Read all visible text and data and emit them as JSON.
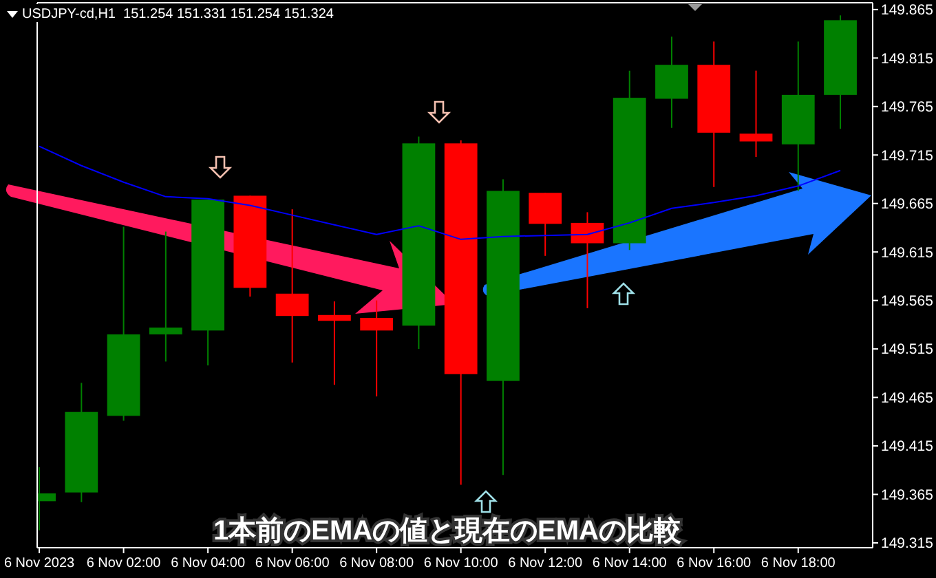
{
  "chart_data": {
    "type": "candlestick",
    "title": "USDJPY-cd,H1  151.254 151.331 151.254 151.324",
    "x": [
      "2023-11-06T00:00",
      "2023-11-06T01:00",
      "2023-11-06T02:00",
      "2023-11-06T03:00",
      "2023-11-06T04:00",
      "2023-11-06T05:00",
      "2023-11-06T06:00",
      "2023-11-06T07:00",
      "2023-11-06T08:00",
      "2023-11-06T09:00",
      "2023-11-06T10:00",
      "2023-11-06T11:00",
      "2023-11-06T12:00",
      "2023-11-06T13:00",
      "2023-11-06T14:00",
      "2023-11-06T15:00",
      "2023-11-06T16:00",
      "2023-11-06T17:00",
      "2023-11-06T18:00",
      "2023-11-06T19:00"
    ],
    "ohlc": [
      [
        149.358,
        149.393,
        149.328,
        149.366
      ],
      [
        149.367,
        149.48,
        149.357,
        149.45
      ],
      [
        149.446,
        149.641,
        149.441,
        149.53
      ],
      [
        149.53,
        149.636,
        149.502,
        149.537
      ],
      [
        149.534,
        149.669,
        149.498,
        149.669
      ],
      [
        149.673,
        149.673,
        149.569,
        149.578
      ],
      [
        149.572,
        149.659,
        149.501,
        149.549
      ],
      [
        149.55,
        149.564,
        149.478,
        149.544
      ],
      [
        149.547,
        149.565,
        149.466,
        149.534
      ],
      [
        149.539,
        149.734,
        149.515,
        149.727
      ],
      [
        149.727,
        149.73,
        149.375,
        149.489
      ],
      [
        149.482,
        149.69,
        149.385,
        149.678
      ],
      [
        149.676,
        149.676,
        149.611,
        149.644
      ],
      [
        149.645,
        149.656,
        149.557,
        149.624
      ],
      [
        149.624,
        149.802,
        149.617,
        149.774
      ],
      [
        149.773,
        149.837,
        149.743,
        149.808
      ],
      [
        149.808,
        149.832,
        149.682,
        149.738
      ],
      [
        149.737,
        149.802,
        149.713,
        149.729
      ],
      [
        149.726,
        149.832,
        149.678,
        149.777
      ],
      [
        149.777,
        149.859,
        149.742,
        149.854
      ]
    ],
    "colors": [
      "#008000",
      "#008000",
      "#008000",
      "#008000",
      "#008000",
      "#ff0000",
      "#ff0000",
      "#ff0000",
      "#ff0000",
      "#008000",
      "#ff0000",
      "#008000",
      "#ff0000",
      "#ff0000",
      "#008000",
      "#008000",
      "#ff0000",
      "#ff0000",
      "#008000",
      "#008000"
    ],
    "series": [
      {
        "type": "line",
        "color": "#0000ff",
        "x": [
          "2023-11-06T00:00",
          "2023-11-06T01:00",
          "2023-11-06T02:00",
          "2023-11-06T03:00",
          "2023-11-06T04:00",
          "2023-11-06T05:00",
          "2023-11-06T06:00",
          "2023-11-06T07:00",
          "2023-11-06T08:00",
          "2023-11-06T09:00",
          "2023-11-06T10:00",
          "2023-11-06T11:00",
          "2023-11-06T12:00",
          "2023-11-06T13:00",
          "2023-11-06T14:00",
          "2023-11-06T15:00",
          "2023-11-06T16:00",
          "2023-11-06T17:00",
          "2023-11-06T18:00",
          "2023-11-06T19:00"
        ],
        "values": [
          149.724,
          149.704,
          149.687,
          149.672,
          149.67,
          149.663,
          149.653,
          149.643,
          149.633,
          149.642,
          149.628,
          149.631,
          149.632,
          149.633,
          149.645,
          149.66,
          149.666,
          149.673,
          149.683,
          149.699
        ]
      }
    ],
    "xlim": [
      "2023-11-05T23:57",
      "2023-11-06T19:46"
    ],
    "xticks": [
      {
        "value": "2023-11-06T00:00",
        "label": "6 Nov 2023"
      },
      {
        "value": "2023-11-06T02:00",
        "label": "6 Nov 02:00"
      },
      {
        "value": "2023-11-06T04:00",
        "label": "6 Nov 04:00"
      },
      {
        "value": "2023-11-06T06:00",
        "label": "6 Nov 06:00"
      },
      {
        "value": "2023-11-06T08:00",
        "label": "6 Nov 08:00"
      },
      {
        "value": "2023-11-06T10:00",
        "label": "6 Nov 10:00"
      },
      {
        "value": "2023-11-06T12:00",
        "label": "6 Nov 12:00"
      },
      {
        "value": "2023-11-06T14:00",
        "label": "6 Nov 14:00"
      },
      {
        "value": "2023-11-06T16:00",
        "label": "6 Nov 16:00"
      },
      {
        "value": "2023-11-06T18:00",
        "label": "6 Nov 18:00"
      }
    ],
    "ylim": [
      149.31,
      149.872
    ],
    "yticks": [
      149.315,
      149.365,
      149.415,
      149.465,
      149.515,
      149.565,
      149.615,
      149.665,
      149.715,
      149.765,
      149.815,
      149.865
    ],
    "annotations": [
      "1本前のEMAの値と現在のEMAの比較"
    ]
  }
}
